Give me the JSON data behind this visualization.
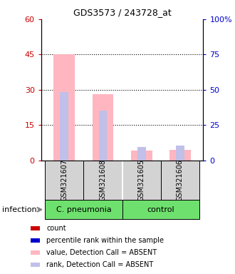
{
  "title": "GDS3573 / 243728_at",
  "samples": [
    "GSM321607",
    "GSM321608",
    "GSM321605",
    "GSM321606"
  ],
  "left_ylim": [
    0,
    60
  ],
  "right_ylim": [
    0,
    100
  ],
  "left_yticks": [
    0,
    15,
    30,
    45,
    60
  ],
  "right_yticks": [
    0,
    25,
    50,
    75,
    100
  ],
  "left_yticklabels": [
    "0",
    "15",
    "30",
    "45",
    "60"
  ],
  "right_yticklabels": [
    "0",
    "25",
    "50",
    "75",
    "100%"
  ],
  "left_ylabel_color": "#cc0000",
  "right_ylabel_color": "#0000cc",
  "bar_values_absent": [
    45.0,
    28.0,
    4.0,
    4.5
  ],
  "bar_rank_absent_pct": [
    48.5,
    35.0,
    9.5,
    10.5
  ],
  "absent_bar_color": "#FFB6C1",
  "absent_rank_color": "#C0C0E8",
  "dotted_yticks": [
    15,
    30,
    45
  ],
  "infection_label": "infection",
  "group_label_cpneumonia": "C. pneumonia",
  "group_label_control": "control",
  "cpneumonia_indices": [
    0,
    1
  ],
  "control_indices": [
    2,
    3
  ],
  "legend_items": [
    {
      "color": "#cc0000",
      "label": "count"
    },
    {
      "color": "#0000cc",
      "label": "percentile rank within the sample"
    },
    {
      "color": "#FFB6C1",
      "label": "value, Detection Call = ABSENT"
    },
    {
      "color": "#C0C0E8",
      "label": "rank, Detection Call = ABSENT"
    }
  ],
  "bg_color_cpneumonia": "#6EE06E",
  "bg_color_control": "#6EE06E",
  "sample_box_color": "#D3D3D3",
  "right_yticklabels_all": [
    "0",
    "25",
    "50",
    "75",
    "100%"
  ]
}
